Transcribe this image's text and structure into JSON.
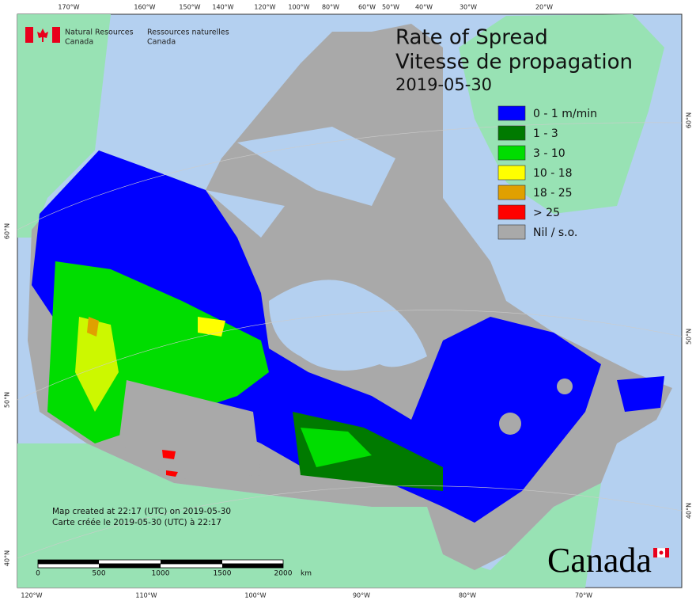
{
  "header": {
    "agency_en": [
      "Natural Resources",
      "Canada"
    ],
    "agency_fr": [
      "Ressources naturelles",
      "Canada"
    ]
  },
  "title": [
    "Rate of Spread",
    "Vitesse de propagation",
    "2019-05-30"
  ],
  "legend": {
    "items": [
      {
        "label": "0 - 1 m/min",
        "color": "#0000ff"
      },
      {
        "label": "1 - 3",
        "color": "#007a00"
      },
      {
        "label": "3 - 10",
        "color": "#00dd00"
      },
      {
        "label": "10 - 18",
        "color": "#ffff00"
      },
      {
        "label": "18 - 25",
        "color": "#e0a000"
      },
      {
        "label": "> 25",
        "color": "#ff0000"
      },
      {
        "label": "Nil / s.o.",
        "color": "#a9a9a9"
      }
    ]
  },
  "graticule": {
    "top": [
      "170°W",
      "160°W",
      "150°W",
      "140°W",
      "120°W",
      "100°W",
      "80°W",
      "60°W",
      "50°W",
      "40°W",
      "30°W",
      "20°W"
    ],
    "bottom": [
      "120°W",
      "110°W",
      "100°W",
      "90°W",
      "80°W",
      "70°W"
    ],
    "left": [
      "60°N",
      "50°N",
      "40°N"
    ],
    "right": [
      "60°N",
      "50°N",
      "40°N"
    ]
  },
  "footer": [
    "Map created at 22:17 (UTC) on 2019-05-30",
    "Carte créée le 2019-05-30 (UTC) à 22:17"
  ],
  "scale_bar": {
    "labels": [
      "0",
      "500",
      "1000",
      "1500",
      "2000"
    ],
    "unit": "km"
  },
  "wordmark": "Canada"
}
